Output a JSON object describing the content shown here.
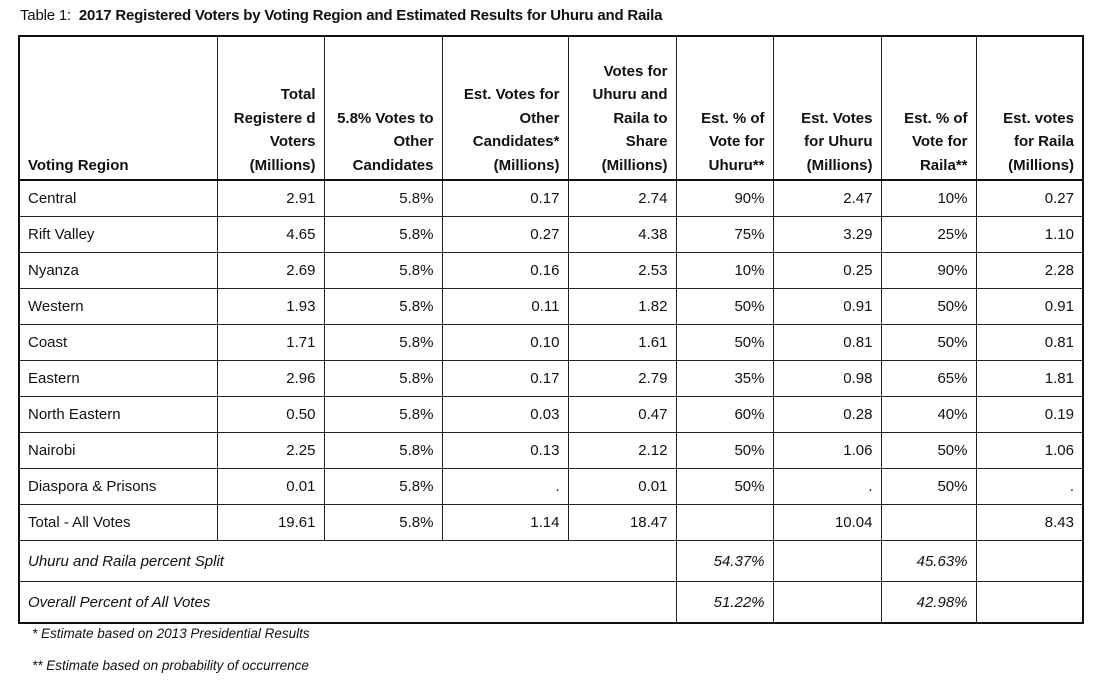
{
  "title_prefix": "Table 1:",
  "title": "2017 Registered Voters by Voting Region and Estimated Results for Uhuru and Raila",
  "headers": [
    "Voting Region",
    "Total Registere d Voters (Millions)",
    "5.8% Votes to Other Candidates",
    "Est. Votes for Other Candidates* (Millions)",
    "Votes for Uhuru and Raila to Share (Millions)",
    "Est. % of Vote for Uhuru**",
    "Est. Votes for Uhuru (Millions)",
    "Est. % of Vote for Raila**",
    "Est. votes for Raila (Millions)"
  ],
  "rows": [
    [
      "Central",
      "2.91",
      "5.8%",
      "0.17",
      "2.74",
      "90%",
      "2.47",
      "10%",
      "0.27"
    ],
    [
      "Rift Valley",
      "4.65",
      "5.8%",
      "0.27",
      "4.38",
      "75%",
      "3.29",
      "25%",
      "1.10"
    ],
    [
      "Nyanza",
      "2.69",
      "5.8%",
      "0.16",
      "2.53",
      "10%",
      "0.25",
      "90%",
      "2.28"
    ],
    [
      "Western",
      "1.93",
      "5.8%",
      "0.11",
      "1.82",
      "50%",
      "0.91",
      "50%",
      "0.91"
    ],
    [
      "Coast",
      "1.71",
      "5.8%",
      "0.10",
      "1.61",
      "50%",
      "0.81",
      "50%",
      "0.81"
    ],
    [
      "Eastern",
      "2.96",
      "5.8%",
      "0.17",
      "2.79",
      "35%",
      "0.98",
      "65%",
      "1.81"
    ],
    [
      "North Eastern",
      "0.50",
      "5.8%",
      "0.03",
      "0.47",
      "60%",
      "0.28",
      "40%",
      "0.19"
    ],
    [
      "Nairobi",
      "2.25",
      "5.8%",
      "0.13",
      "2.12",
      "50%",
      "1.06",
      "50%",
      "1.06"
    ],
    [
      "Diaspora & Prisons",
      "0.01",
      "5.8%",
      ".",
      "0.01",
      "50%",
      ".",
      "50%",
      "."
    ],
    [
      "Total - All Votes",
      "19.61",
      "5.8%",
      "1.14",
      "18.47",
      "",
      "10.04",
      "",
      "8.43"
    ]
  ],
  "summary": [
    {
      "label": "Uhuru and Raila percent Split",
      "uhuru": "54.37%",
      "raila": "45.63%"
    },
    {
      "label": "Overall Percent of All Votes",
      "uhuru": "51.22%",
      "raila": "42.98%"
    }
  ],
  "footnotes": [
    "* Estimate based on 2013 Presidential Results",
    "** Estimate based on probability of occurrence"
  ]
}
